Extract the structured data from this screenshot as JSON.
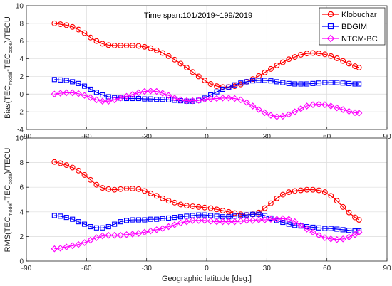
{
  "chart_data": [
    {
      "type": "line",
      "panel": "top",
      "annotation": "Time span:101/2019~199/2019",
      "ylabel_parts": [
        "Bias(TEC",
        "model",
        "-TEC",
        "code",
        ")/TECU"
      ],
      "xlim": [
        -90,
        90
      ],
      "ylim": [
        -4,
        10
      ],
      "xticks": [
        "-90",
        "-60",
        "-30",
        "0",
        "30",
        "60",
        "90"
      ],
      "yticks": [
        "-4",
        "-2",
        "0",
        "2",
        "4",
        "6",
        "8",
        "10"
      ],
      "grid": true,
      "legend_position": "top-right",
      "x": [
        -76,
        -73,
        -70,
        -67,
        -64,
        -61,
        -58,
        -55,
        -52,
        -49,
        -46,
        -43,
        -40,
        -37,
        -34,
        -31,
        -28,
        -25,
        -22,
        -19,
        -16,
        -13,
        -10,
        -7,
        -4,
        -1,
        2,
        5,
        8,
        11,
        14,
        17,
        20,
        23,
        26,
        29,
        32,
        35,
        38,
        41,
        44,
        47,
        50,
        53,
        56,
        59,
        62,
        65,
        68,
        71,
        74,
        76
      ],
      "series": [
        {
          "name": "Klobuchar",
          "color": "#ff0000",
          "marker": "circle",
          "values": [
            8.0,
            7.9,
            7.8,
            7.6,
            7.3,
            6.9,
            6.4,
            6.0,
            5.7,
            5.55,
            5.5,
            5.5,
            5.5,
            5.5,
            5.45,
            5.35,
            5.2,
            4.95,
            4.65,
            4.3,
            3.9,
            3.45,
            3.0,
            2.5,
            2.0,
            1.55,
            1.15,
            0.9,
            0.8,
            0.8,
            0.9,
            1.1,
            1.4,
            1.7,
            2.05,
            2.45,
            2.85,
            3.25,
            3.6,
            3.95,
            4.2,
            4.45,
            4.6,
            4.65,
            4.6,
            4.5,
            4.3,
            4.05,
            3.75,
            3.45,
            3.15,
            3.0
          ]
        },
        {
          "name": "BDGIM",
          "color": "#0000ff",
          "marker": "square",
          "values": [
            1.65,
            1.6,
            1.55,
            1.4,
            1.2,
            0.9,
            0.55,
            0.2,
            -0.1,
            -0.3,
            -0.4,
            -0.45,
            -0.5,
            -0.5,
            -0.5,
            -0.55,
            -0.55,
            -0.6,
            -0.6,
            -0.65,
            -0.7,
            -0.75,
            -0.8,
            -0.8,
            -0.7,
            -0.45,
            -0.1,
            0.25,
            0.55,
            0.8,
            1.05,
            1.25,
            1.4,
            1.5,
            1.55,
            1.55,
            1.5,
            1.4,
            1.3,
            1.2,
            1.15,
            1.15,
            1.15,
            1.2,
            1.25,
            1.3,
            1.3,
            1.3,
            1.25,
            1.2,
            1.15,
            1.15
          ]
        },
        {
          "name": "NTCM-BC",
          "color": "#ff00ff",
          "marker": "diamond",
          "values": [
            0.0,
            0.1,
            0.15,
            0.15,
            0.05,
            -0.15,
            -0.4,
            -0.65,
            -0.8,
            -0.8,
            -0.65,
            -0.45,
            -0.25,
            -0.05,
            0.15,
            0.3,
            0.35,
            0.3,
            0.1,
            -0.15,
            -0.45,
            -0.65,
            -0.75,
            -0.75,
            -0.7,
            -0.6,
            -0.55,
            -0.5,
            -0.45,
            -0.45,
            -0.5,
            -0.65,
            -0.95,
            -1.35,
            -1.75,
            -2.1,
            -2.4,
            -2.55,
            -2.5,
            -2.3,
            -2.0,
            -1.65,
            -1.35,
            -1.2,
            -1.15,
            -1.2,
            -1.35,
            -1.55,
            -1.75,
            -1.95,
            -2.1,
            -2.15
          ]
        }
      ]
    },
    {
      "type": "line",
      "panel": "bottom",
      "ylabel_parts": [
        "RMS(TEC",
        "model",
        "-TEC",
        "code",
        ")/TECU"
      ],
      "xlabel": "Geographic latitude [deg.]",
      "xlim": [
        -90,
        90
      ],
      "ylim": [
        0,
        10
      ],
      "xticks": [
        "-90",
        "-60",
        "-30",
        "0",
        "30",
        "60",
        "90"
      ],
      "yticks": [
        "0",
        "2",
        "4",
        "6",
        "8",
        "10"
      ],
      "grid": true,
      "x": [
        -76,
        -73,
        -70,
        -67,
        -64,
        -61,
        -58,
        -55,
        -52,
        -49,
        -46,
        -43,
        -40,
        -37,
        -34,
        -31,
        -28,
        -25,
        -22,
        -19,
        -16,
        -13,
        -10,
        -7,
        -4,
        -1,
        2,
        5,
        8,
        11,
        14,
        17,
        20,
        23,
        26,
        29,
        32,
        35,
        38,
        41,
        44,
        47,
        50,
        53,
        56,
        59,
        62,
        65,
        68,
        71,
        74,
        76
      ],
      "series": [
        {
          "name": "Klobuchar",
          "color": "#ff0000",
          "marker": "circle",
          "values": [
            8.05,
            7.95,
            7.8,
            7.6,
            7.35,
            7.0,
            6.6,
            6.2,
            5.95,
            5.85,
            5.8,
            5.85,
            5.9,
            5.9,
            5.85,
            5.7,
            5.5,
            5.3,
            5.1,
            4.9,
            4.75,
            4.6,
            4.5,
            4.45,
            4.4,
            4.35,
            4.3,
            4.2,
            4.1,
            4.0,
            3.9,
            3.8,
            3.75,
            3.8,
            3.95,
            4.3,
            4.7,
            5.1,
            5.4,
            5.6,
            5.7,
            5.75,
            5.8,
            5.8,
            5.75,
            5.6,
            5.3,
            4.9,
            4.4,
            3.95,
            3.55,
            3.35
          ]
        },
        {
          "name": "BDGIM",
          "color": "#0000ff",
          "marker": "square",
          "values": [
            3.7,
            3.65,
            3.55,
            3.4,
            3.2,
            3.0,
            2.8,
            2.7,
            2.7,
            2.8,
            3.0,
            3.2,
            3.3,
            3.35,
            3.35,
            3.35,
            3.4,
            3.4,
            3.45,
            3.5,
            3.55,
            3.6,
            3.65,
            3.7,
            3.75,
            3.75,
            3.7,
            3.65,
            3.6,
            3.6,
            3.65,
            3.7,
            3.75,
            3.8,
            3.8,
            3.7,
            3.5,
            3.3,
            3.15,
            3.0,
            2.9,
            2.85,
            2.8,
            2.75,
            2.7,
            2.65,
            2.65,
            2.6,
            2.55,
            2.5,
            2.45,
            2.45
          ]
        },
        {
          "name": "NTCM-BC",
          "color": "#ff00ff",
          "marker": "diamond",
          "values": [
            1.0,
            1.05,
            1.15,
            1.25,
            1.35,
            1.5,
            1.7,
            1.9,
            2.05,
            2.1,
            2.1,
            2.1,
            2.15,
            2.2,
            2.25,
            2.35,
            2.45,
            2.55,
            2.65,
            2.8,
            2.95,
            3.1,
            3.2,
            3.3,
            3.3,
            3.3,
            3.25,
            3.2,
            3.2,
            3.2,
            3.2,
            3.25,
            3.3,
            3.3,
            3.35,
            3.35,
            3.4,
            3.4,
            3.45,
            3.4,
            3.2,
            2.9,
            2.6,
            2.35,
            2.1,
            1.9,
            1.8,
            1.75,
            1.8,
            1.95,
            2.15,
            2.35
          ]
        }
      ]
    }
  ]
}
